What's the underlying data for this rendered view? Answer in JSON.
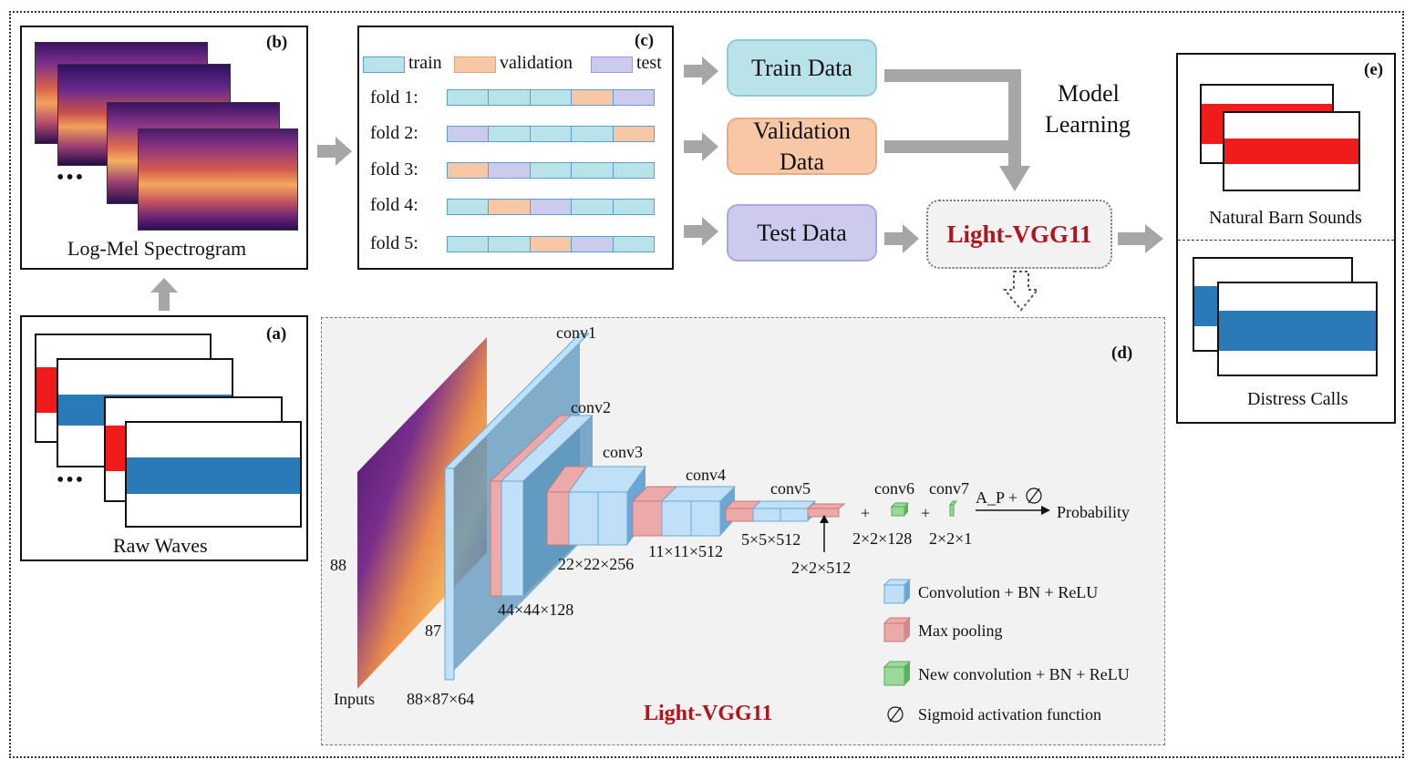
{
  "panels": {
    "b": {
      "tag": "(b)",
      "caption": "Log-Mel Spectrogram",
      "ellipsis": "•••"
    },
    "a": {
      "tag": "(a)",
      "caption": "Raw Waves",
      "ellipsis": "•••"
    },
    "c": {
      "tag": "(c)",
      "legend": {
        "train": "train",
        "validation": "validation",
        "test": "test"
      },
      "folds": [
        {
          "label": "fold 1:",
          "parts": [
            "train",
            "train",
            "train",
            "validation",
            "test"
          ]
        },
        {
          "label": "fold 2:",
          "parts": [
            "test",
            "train",
            "train",
            "train",
            "validation"
          ]
        },
        {
          "label": "fold 3:",
          "parts": [
            "validation",
            "test",
            "train",
            "train",
            "train"
          ]
        },
        {
          "label": "fold 4:",
          "parts": [
            "train",
            "validation",
            "test",
            "train",
            "train"
          ]
        },
        {
          "label": "fold 5:",
          "parts": [
            "train",
            "train",
            "validation",
            "test",
            "train"
          ]
        }
      ]
    },
    "data": {
      "train": "Train Data",
      "validation_line1": "Validation",
      "validation_line2": "Data",
      "test": "Test Data"
    },
    "learning": {
      "line1": "Model",
      "line2": "Learning"
    },
    "model": {
      "name": "Light-VGG11"
    },
    "e": {
      "tag": "(e)",
      "natural": "Natural Barn Sounds",
      "distress": "Distress Calls"
    },
    "d": {
      "tag": "(d)",
      "title": "Light-VGG11",
      "inputs": "Inputs",
      "dim88": "88",
      "dim87": "87",
      "input_shape": "88×87×64",
      "conv1": "conv1",
      "conv2": "conv2",
      "conv3": "conv3",
      "conv4": "conv4",
      "conv5": "conv5",
      "conv6": "conv6",
      "conv7": "conv7",
      "s44": "44×44×128",
      "s22": "22×22×256",
      "s11": "11×11×512",
      "s5": "5×5×512",
      "s2a": "2×2×512",
      "s2b": "2×2×128",
      "s2c": "2×2×1",
      "plus1": "+",
      "plus2": "+",
      "ap": "A_P +",
      "prob": "Probability",
      "legend": {
        "conv": "Convolution + BN + ReLU",
        "pool": "Max pooling",
        "newconv": "New convolution + BN + ReLU",
        "sigmoid": "Sigmoid activation function"
      }
    }
  },
  "colors": {
    "train": "#b9e3e8",
    "validation": "#f7c7a6",
    "test": "#cccbee",
    "model_red": "#b0141c",
    "arrow_gray": "#a6a6a6",
    "conv_blue": "#bfe0f7",
    "pool_red": "#eba9a9",
    "new_green": "#9ad99a"
  }
}
